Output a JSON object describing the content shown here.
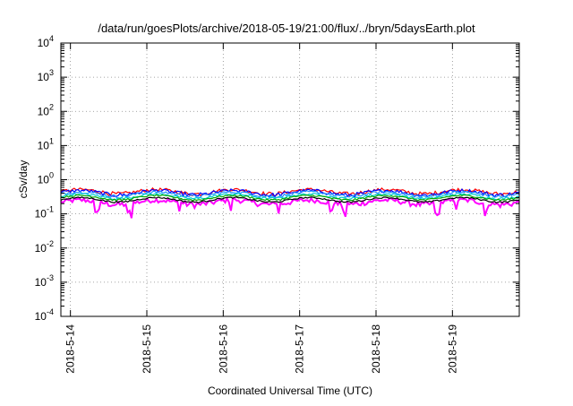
{
  "chart_data": {
    "type": "line",
    "title": "/data/run/goesPlots/archive/2018-05-19/21:00/flux/../bryn/5daysEarth.plot",
    "xlabel": "Coordinated Universal Time (UTC)",
    "ylabel": "cSv/day",
    "yscale": "log",
    "ylim": [
      0.0001,
      10000
    ],
    "xlim": [
      "2018-05-13T21:00",
      "2018-05-19T21:00"
    ],
    "grid": true,
    "x_tick_labels": [
      "2018-5-14",
      "2018-5-15",
      "2018-5-16",
      "2018-5-17",
      "2018-5-18",
      "2018-5-19"
    ],
    "y_ticks": [
      {
        "value": 0.0001,
        "base": "10",
        "exp": "-4"
      },
      {
        "value": 0.001,
        "base": "10",
        "exp": "-3"
      },
      {
        "value": 0.01,
        "base": "10",
        "exp": "-2"
      },
      {
        "value": 0.1,
        "base": "10",
        "exp": "-1"
      },
      {
        "value": 1,
        "base": "10",
        "exp": "0"
      },
      {
        "value": 10,
        "base": "10",
        "exp": "1"
      },
      {
        "value": 100,
        "base": "10",
        "exp": "2"
      },
      {
        "value": 1000,
        "base": "10",
        "exp": "3"
      },
      {
        "value": 10000,
        "base": "10",
        "exp": "4"
      }
    ],
    "series": [
      {
        "color": "#ff00ff",
        "level": 0.22,
        "variability": 0.35,
        "dip": true
      },
      {
        "color": "#ff0000",
        "level": 0.45,
        "variability": 0.25,
        "dip": false
      },
      {
        "color": "#0000ff",
        "level": 0.42,
        "variability": 0.25,
        "dip": false
      },
      {
        "color": "#1e90ff",
        "level": 0.38,
        "variability": 0.2,
        "dip": false
      },
      {
        "color": "#00ced1",
        "level": 0.33,
        "variability": 0.15,
        "dip": false
      },
      {
        "color": "#00aa00",
        "level": 0.3,
        "variability": 0.12,
        "dip": false
      },
      {
        "color": "#000000",
        "level": 0.26,
        "variability": 0.1,
        "dip": false
      }
    ]
  }
}
